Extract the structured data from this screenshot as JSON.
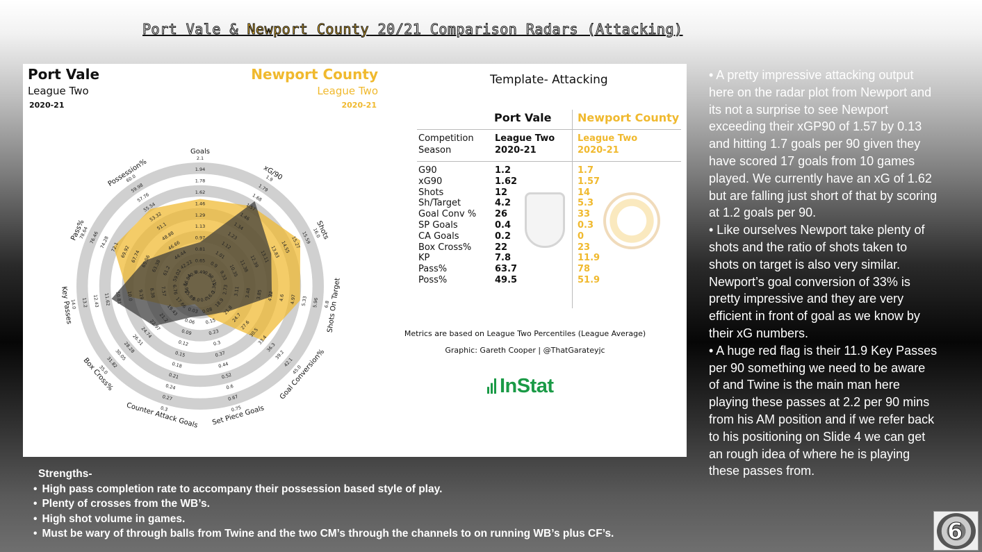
{
  "slide": {
    "title_parts": [
      "Port Vale & ",
      "Newport County",
      " 20/21 Comparison Radars (Attacking)"
    ]
  },
  "radar": {
    "team_a": {
      "name": "Port Vale",
      "league": "League Two",
      "season": "2020-21"
    },
    "team_b": {
      "name": "Newport County",
      "league": "League Two",
      "season": "2020-21"
    },
    "colors": {
      "team_a": "#3a3a3a",
      "team_b": "#f0b92e",
      "rings": "#d0d0d0"
    }
  },
  "chart_data": {
    "type": "radar",
    "axes": [
      {
        "label": "Goals",
        "ticks": [
          "0.49",
          "0.65",
          "0.81",
          "0.97",
          "1.13",
          "1.29",
          "1.46",
          "1.62",
          "1.78",
          "1.94",
          "2.1"
        ]
      },
      {
        "label": "xG/90",
        "ticks": [
          "0.8",
          "0.9",
          "1.01",
          "1.12",
          "1.23",
          "1.34",
          "1.46",
          "1.57",
          "1.68",
          "1.79",
          "1.9"
        ]
      },
      {
        "label": "Shots",
        "ticks": [
          "8.31",
          "9.33",
          "10.35",
          "11.38",
          "12.39",
          "13.11",
          "13.83",
          "14.55",
          "15.27",
          "15.59",
          "16.0"
        ]
      },
      {
        "label": "Shots On Target",
        "ticks": [
          "2.36",
          "2.73",
          "3.11",
          "3.48",
          "3.85",
          "4.22",
          "4.6",
          "4.97",
          "5.33",
          "5.96",
          "6.8"
        ]
      },
      {
        "label": "Goal Conversion%",
        "ticks": [
          "16.0",
          "18.9",
          "21.8",
          "24.7",
          "27.6",
          "30.5",
          "33.4",
          "36.3",
          "39.2",
          "42.1",
          "45.0"
        ]
      },
      {
        "label": "Set Piece Goals",
        "ticks": [
          "0.0",
          "0.08",
          "0.15",
          "0.23",
          "0.3",
          "0.37",
          "0.44",
          "0.52",
          "0.6",
          "0.67",
          "0.75"
        ]
      },
      {
        "label": "Counter Attack Goals",
        "ticks": [
          "0.0",
          "0.03",
          "0.06",
          "0.09",
          "0.12",
          "0.15",
          "0.18",
          "0.21",
          "0.24",
          "0.27",
          "0.3"
        ]
      },
      {
        "label": "Box Cross%",
        "ticks": [
          "15.89",
          "17.66",
          "19.43",
          "21.2",
          "22.97",
          "24.74",
          "26.51",
          "28.28",
          "30.05",
          "31.82",
          "35.0"
        ]
      },
      {
        "label": "Key Passes",
        "ticks": [
          "5.95",
          "6.76",
          "7.57",
          "8.38",
          "9.19",
          "10.0",
          "10.81",
          "11.62",
          "12.43",
          "13.2",
          "14.0"
        ]
      },
      {
        "label": "Pass%",
        "ticks": [
          "56.84",
          "59.02",
          "61.2",
          "63.38",
          "65.56",
          "67.74",
          "69.92",
          "72.1",
          "74.28",
          "76.46",
          "78.64"
        ]
      },
      {
        "label": "Possession%",
        "ticks": [
          "40.0",
          "42.22",
          "44.44",
          "46.66",
          "48.88",
          "51.1",
          "53.32",
          "55.54",
          "57.76",
          "59.98",
          "60.0"
        ]
      }
    ],
    "series": [
      {
        "name": "Port Vale",
        "values": [
          0.3,
          0.8,
          0.6,
          0.55,
          0.25,
          0.18,
          0.2,
          0.45,
          0.7,
          0.45,
          0.3
        ]
      },
      {
        "name": "Newport County",
        "values": [
          0.68,
          0.75,
          0.88,
          0.8,
          0.65,
          0.2,
          0.08,
          0.2,
          0.55,
          0.75,
          0.72
        ]
      }
    ]
  },
  "table": {
    "template_title": "Template- Attacking",
    "col_a": "Port Vale",
    "col_b": "Newport County",
    "meta_rows": [
      {
        "k": "Competition",
        "a": "League Two",
        "b": "League Two"
      },
      {
        "k": "Season",
        "a": "2020-21",
        "b": "2020-21"
      }
    ],
    "stat_rows": [
      {
        "k": "G90",
        "a": "1.2",
        "b": "1.7"
      },
      {
        "k": "xG90",
        "a": "1.62",
        "b": "1.57"
      },
      {
        "k": "Shots",
        "a": "12",
        "b": "14"
      },
      {
        "k": "Sh/Target",
        "a": "4.2",
        "b": "5.3"
      },
      {
        "k": "Goal Conv %",
        "a": "26",
        "b": "33"
      },
      {
        "k": "SP Goals",
        "a": "0.4",
        "b": "0.3"
      },
      {
        "k": "CA Goals",
        "a": "0.2",
        "b": "0"
      },
      {
        "k": "Box Cross%",
        "a": "22",
        "b": "23"
      },
      {
        "k": "KP",
        "a": "7.8",
        "b": "11.9"
      },
      {
        "k": "Pass%",
        "a": "63.7",
        "b": "78"
      },
      {
        "k": "Poss%",
        "a": "49.5",
        "b": "51.9"
      }
    ],
    "footnote": "Metrics are based on League Two Percentiles (League Average)",
    "credit": "Graphic: Gareth Cooper | @ThatGarateyjc",
    "logo_text": "InStat"
  },
  "commentary": [
    "•  A pretty impressive attacking output here on the radar plot from Newport and its not a surprise to see Newport exceeding their xGP90 of 1.57 by 0.13 and hitting 1.7 goals per 90 given they have scored 17 goals from 10 games played. We currently have an xG of 1.62 but are falling just short of that by scoring at 1.2 goals per 90.",
    "•  Like ourselves Newport take plenty of shots and the ratio of shots taken to shots on target is also very similar. Newport’s goal conversion of 33% is pretty impressive and they are very efficient in front of goal as we know by their xG numbers.",
    "•  A huge red flag is their 11.9 Key Passes per 90 something we need to be aware of  and Twine is the main man here playing these passes at 2.2 per 90 mins from his AM position and if we refer back to his positioning on Slide 4 we can get an rough idea of where he is playing these passes from."
  ],
  "strengths": {
    "heading": "Strengths-",
    "items": [
      "High pass completion rate to accompany their possession based style of play.",
      "Plenty of crosses from the WB’s.",
      "High shot volume in games.",
      "Must be wary of through balls from Twine and the two CM’s through the channels to on running WB’s plus CF’s."
    ]
  },
  "slide_number": "6"
}
